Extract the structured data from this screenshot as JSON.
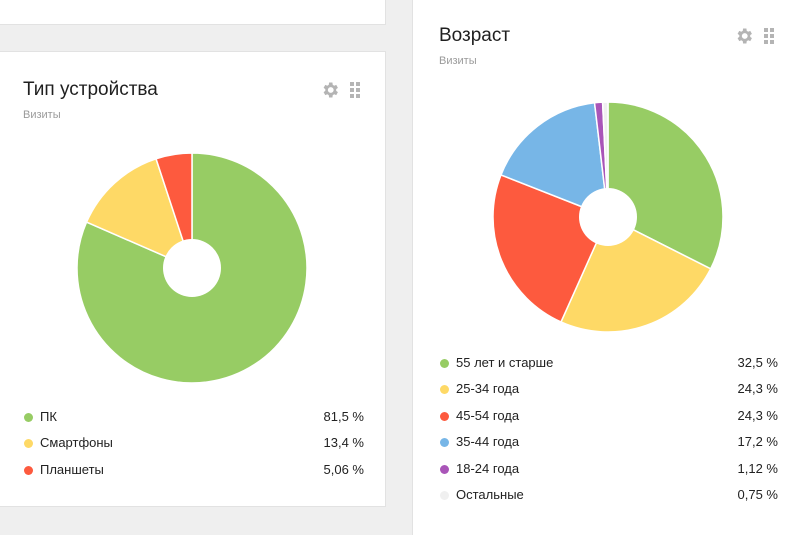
{
  "device_widget": {
    "title": "Тип устройства",
    "subtitle": "Визиты",
    "items": [
      {
        "label": "ПК",
        "value": "81,5 %",
        "share": 81.5,
        "color": "#97cc64"
      },
      {
        "label": "Смартфоны",
        "value": "13,4 %",
        "share": 13.4,
        "color": "#fed966"
      },
      {
        "label": "Планшеты",
        "value": "5,06 %",
        "share": 5.06,
        "color": "#fd5a3e"
      }
    ]
  },
  "age_widget": {
    "title": "Возраст",
    "subtitle": "Визиты",
    "items": [
      {
        "label": "55 лет и старше",
        "value": "32,5 %",
        "share": 32.5,
        "color": "#97cc64"
      },
      {
        "label": "25-34 года",
        "value": "24,3 %",
        "share": 24.3,
        "color": "#fed966"
      },
      {
        "label": "45-54 года",
        "value": "24,3 %",
        "share": 24.3,
        "color": "#fd5a3e"
      },
      {
        "label": "35-44 года",
        "value": "17,2 %",
        "share": 17.2,
        "color": "#77b6e7"
      },
      {
        "label": "18-24 года",
        "value": "1,12 %",
        "share": 1.12,
        "color": "#a955b8"
      },
      {
        "label": "Остальные",
        "value": "0,75 %",
        "share": 0.75,
        "color": "#f0f0f0"
      }
    ]
  },
  "icons": {
    "settings": "gear-icon",
    "drag": "drag-handle-icon"
  }
}
